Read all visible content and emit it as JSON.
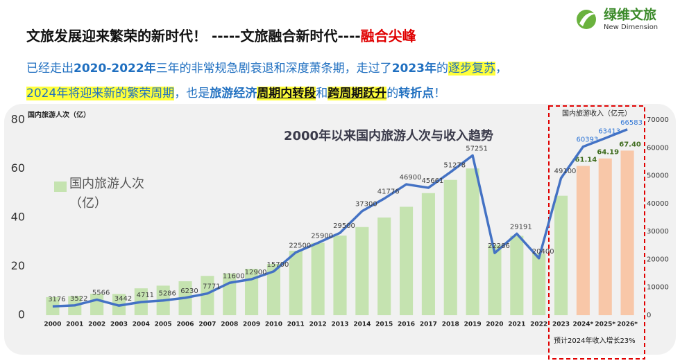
{
  "header": {
    "title": [
      "文旅发展迎来繁荣的新时代！ -----文旅融合新时代----",
      "融合尖峰"
    ],
    "line1": [
      "已经走出",
      "2020-2022年",
      "三年的非常规急剧衰退和深度萧条期，走过了",
      "2023年",
      "的",
      "逐步复苏",
      "，"
    ],
    "line2": [
      "2024年将迎来新的繁荣周期",
      "，也是",
      "旅游经济",
      "周期内转段",
      "和",
      "跨周期跃升",
      "的",
      "转折点",
      "！"
    ]
  },
  "logo": {
    "name": "绿维文旅",
    "subtitle": "New Dimension"
  },
  "chart_data": {
    "type": "bar-line",
    "title": "2000年以来国内旅游人次与收入趋势",
    "y_label": "国内旅游人次（亿）",
    "y2_label": "国内旅游收入（亿元）",
    "annotation": "预计2024年收入增长23%",
    "categories": [
      "2000",
      "2001",
      "2002",
      "2003",
      "2004",
      "2005",
      "2006",
      "2007",
      "2008",
      "2009",
      "2010",
      "2011",
      "2012",
      "2013",
      "2014",
      "2015",
      "2016",
      "2017",
      "2018",
      "2019",
      "2020",
      "2021",
      "2022",
      "2023",
      "2024*",
      "2025*",
      "2026*"
    ],
    "ylim": [
      0,
      80
    ],
    "yticks": [
      0,
      20,
      40,
      60,
      80
    ],
    "y2lim": [
      0,
      70000
    ],
    "y2ticks": [
      0,
      10000,
      20000,
      30000,
      40000,
      50000,
      60000,
      70000
    ],
    "series": [
      {
        "name": "国内旅游人次（亿）",
        "type": "bar",
        "color": "#c5e3b0",
        "colors": [
          "#c5e3b0",
          "#c5e3b0",
          "#c5e3b0",
          "#c5e3b0",
          "#c5e3b0",
          "#c5e3b0",
          "#c5e3b0",
          "#c5e3b0",
          "#c5e3b0",
          "#c5e3b0",
          "#c5e3b0",
          "#c5e3b0",
          "#c5e3b0",
          "#c5e3b0",
          "#c5e3b0",
          "#c5e3b0",
          "#c5e3b0",
          "#c5e3b0",
          "#c5e3b0",
          "#c5e3b0",
          "#c5e3b0",
          "#c5e3b0",
          "#c5e3b0",
          "#c5e3b0",
          "#f8c7a8",
          "#f8c7a8",
          "#f8c7a8"
        ],
        "values": [
          7.4,
          7.8,
          8.8,
          8.7,
          11.0,
          12.1,
          13.9,
          16.1,
          17.1,
          19.0,
          21.0,
          26.4,
          29.6,
          32.6,
          36.1,
          40.0,
          44.4,
          50.0,
          55.4,
          60.1,
          28.8,
          32.5,
          25.3,
          48.9,
          61.14,
          64.19,
          67.4
        ],
        "value_labels": [
          null,
          null,
          null,
          null,
          null,
          null,
          null,
          null,
          null,
          null,
          null,
          null,
          null,
          null,
          null,
          null,
          null,
          null,
          null,
          null,
          null,
          null,
          null,
          null,
          "61.14",
          "64.19",
          "67.40"
        ]
      },
      {
        "type": "line",
        "axis": "y2",
        "color": "#4472c4",
        "values": [
          3176,
          3522,
          5566,
          3442,
          4711,
          5286,
          6230,
          7771,
          11600,
          12900,
          15700,
          22500,
          25900,
          29500,
          37300,
          41776,
          46900,
          45661,
          51278,
          57251,
          22286,
          29191,
          20400,
          49100,
          60393,
          63413,
          66583
        ],
        "label_colors": [
          "#404040",
          "#404040",
          "#404040",
          "#404040",
          "#404040",
          "#404040",
          "#404040",
          "#404040",
          "#404040",
          "#404040",
          "#404040",
          "#404040",
          "#404040",
          "#404040",
          "#404040",
          "#404040",
          "#404040",
          "#404040",
          "#404040",
          "#404040",
          "#404040",
          "#404040",
          "#404040",
          "#404040",
          "#2e75d6",
          "#2e75d6",
          "#2e75d6"
        ]
      }
    ]
  }
}
